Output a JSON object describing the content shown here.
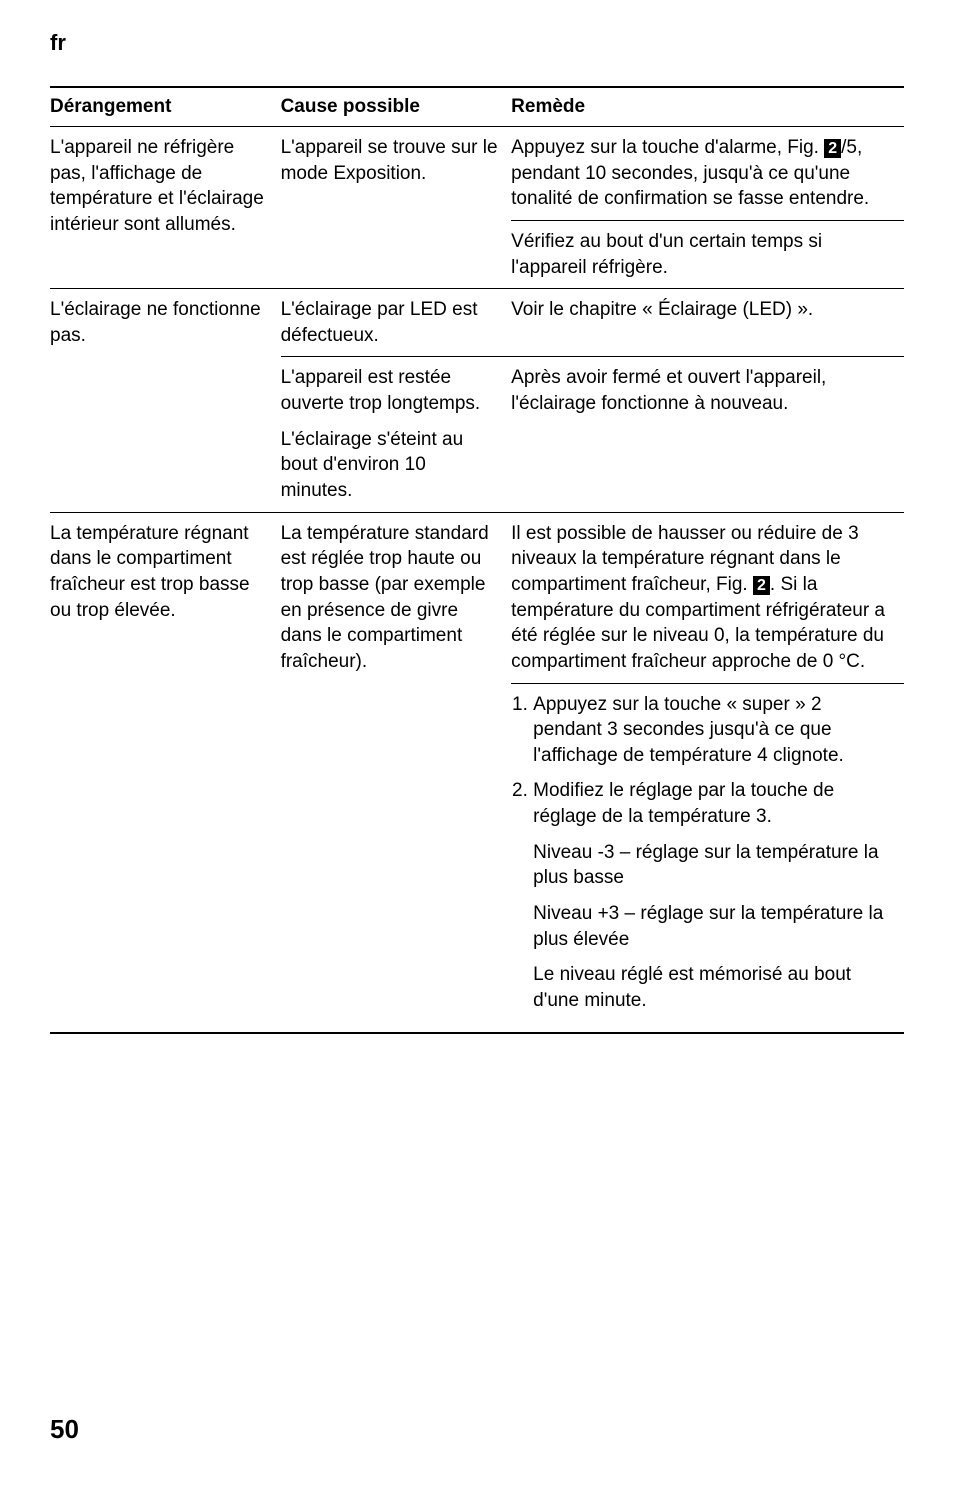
{
  "lang": "fr",
  "page_number": "50",
  "headers": {
    "col1": "Dérangement",
    "col2": "Cause possible",
    "col3": "Remède"
  },
  "rows": {
    "r1": {
      "c1": "L'appareil ne réfrigère pas, l'affichage de température et l'éclairage intérieur sont allumés.",
      "c2": "L'appareil se trouve sur le mode Exposition.",
      "c3a": "Appuyez sur la touche d'alarme, Fig. ",
      "c3a_icon": "2",
      "c3a_tail": "/5, pendant 10 secondes, jusqu'à ce qu'une tonalité de confirmation se fasse entendre.",
      "c3b": "Vérifiez au bout d'un certain temps si l'appareil réfrigère."
    },
    "r2": {
      "c1": "L'éclairage ne fonctionne pas.",
      "c2": "L'éclairage par LED est défectueux.",
      "c3": "Voir le chapitre « Éclairage (LED) »."
    },
    "r3": {
      "c2a": "L'appareil est restée ouverte trop longtemps.",
      "c2b": "L'éclairage s'éteint au bout d'environ 10 minutes.",
      "c3": "Après avoir fermé et ouvert l'appareil, l'éclairage fonctionne à nouveau."
    },
    "r4": {
      "c1": "La température régnant dans le compartiment fraîcheur est trop basse ou trop élevée.",
      "c2": "La température standard est réglée trop haute ou trop basse (par exemple en présence de givre dans le compartiment fraîcheur).",
      "c3a": "Il est possible de hausser ou réduire de 3 niveaux la température régnant dans le compartiment fraîcheur, Fig. ",
      "c3a_icon": "2",
      "c3a_tail": ". Si la température du compartiment réfrigérateur a été réglée sur le niveau 0, la température du compartiment fraîcheur approche de 0 °C."
    },
    "r5": {
      "li1": "Appuyez sur la touche « super » 2 pendant 3 secondes jusqu'à ce que l'affichage de température 4 clignote.",
      "li2": "Modifiez le réglage par la touche de réglage de la température 3.",
      "p1": "Niveau -3 – réglage sur la température la plus basse",
      "p2": "Niveau +3 – réglage sur la  température la plus élevée",
      "p3": "Le niveau réglé est mémorisé au bout d'une minute."
    }
  }
}
